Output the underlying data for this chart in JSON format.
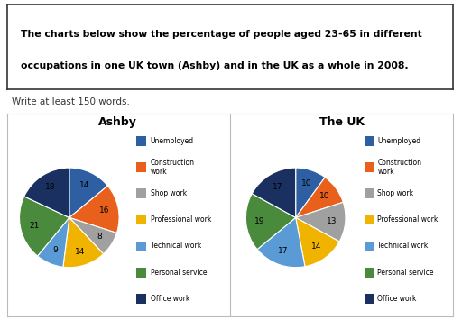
{
  "ashby_values": [
    14,
    16,
    8,
    14,
    9,
    21,
    18
  ],
  "uk_values": [
    10,
    10,
    13,
    14,
    17,
    19,
    17
  ],
  "slice_colors": [
    "#2e5fa3",
    "#e8601c",
    "#a0a0a0",
    "#f0b400",
    "#5b9bd5",
    "#4a8a3c",
    "#1a3060"
  ],
  "title1": "Ashby",
  "title2": "The UK",
  "header_line1": "The charts below show the percentage of people aged 23-65 in different",
  "header_line2": "occupations in one UK town (Ashby) and in the UK as a whole in 2008.",
  "subtext": "Write at least 150 words.",
  "legend_labels": [
    "Unemployed",
    "Construction\nwork",
    "Shop work",
    "Professional work",
    "Technical work",
    "Personal service",
    "Office work"
  ],
  "legend_dot_colors": [
    "#2e5fa3",
    "#e8601c",
    "#a0a0a0",
    "#f0b400",
    "#5b9bd5",
    "#4a8a3c",
    "#1a3060"
  ]
}
